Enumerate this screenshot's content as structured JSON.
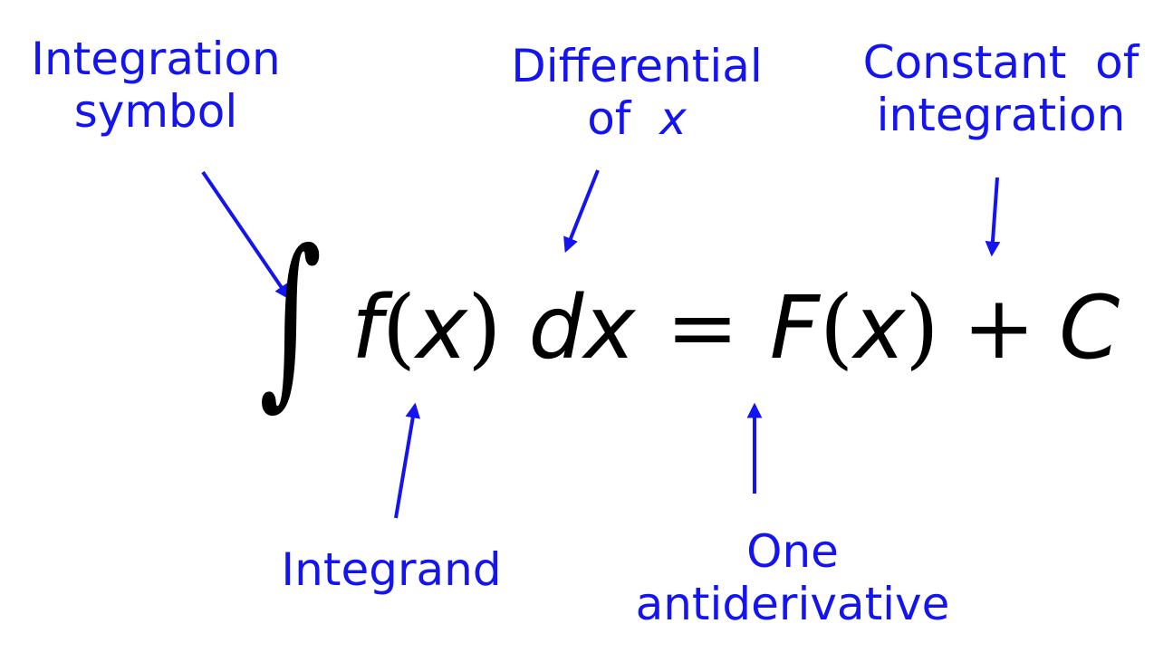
{
  "labels": {
    "integration_symbol": {
      "line1": "Integration",
      "line2": "symbol"
    },
    "differential": {
      "line1": "Differential",
      "line2_prefix": "of",
      "line2_var": "x"
    },
    "constant": {
      "line1": "Constant  of",
      "line2": "integration"
    },
    "integrand": "Integrand",
    "antiderivative": {
      "line1": "One",
      "line2": "antiderivative"
    }
  },
  "equation": {
    "integral_sign": "∫",
    "f": "f",
    "lparen": "(",
    "x": "x",
    "rparen": ")",
    "dx": "dx",
    "equals": "=",
    "F": "F",
    "plus": "+",
    "C": "C"
  },
  "colors": {
    "annotation": "#1414f0",
    "equation": "#000000",
    "background": "#ffffff"
  }
}
